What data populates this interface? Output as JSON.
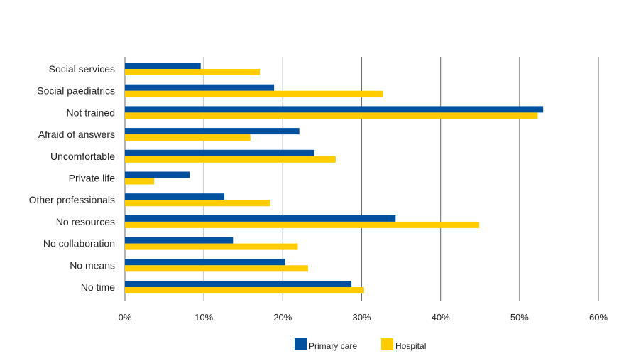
{
  "chart_data": {
    "type": "bar",
    "orientation": "horizontal",
    "title": "",
    "xlabel": "",
    "ylabel": "",
    "xlim": [
      0,
      60
    ],
    "x_ticks": [
      0,
      10,
      20,
      30,
      40,
      50,
      60
    ],
    "x_tick_labels": [
      "0%",
      "10%",
      "20%",
      "30%",
      "40%",
      "50%",
      "60%"
    ],
    "grid": "vertical",
    "legend_position": "bottom",
    "categories": [
      "Social services",
      "Social paediatrics",
      "Not trained",
      "Afraid of answers",
      "Uncomfortable",
      "Private life",
      "Other professionals",
      "No resources",
      "No collaboration",
      "No means",
      "No time"
    ],
    "series": [
      {
        "name": "Primary care",
        "color": "#0050A0",
        "values": [
          9.6,
          18.9,
          53.0,
          22.1,
          24.0,
          8.2,
          12.6,
          34.3,
          13.7,
          20.3,
          28.7
        ]
      },
      {
        "name": "Hospital",
        "color": "#FFCC00",
        "values": [
          17.1,
          32.7,
          52.3,
          15.9,
          26.7,
          3.7,
          18.4,
          44.9,
          21.9,
          23.2,
          30.3
        ]
      }
    ]
  }
}
